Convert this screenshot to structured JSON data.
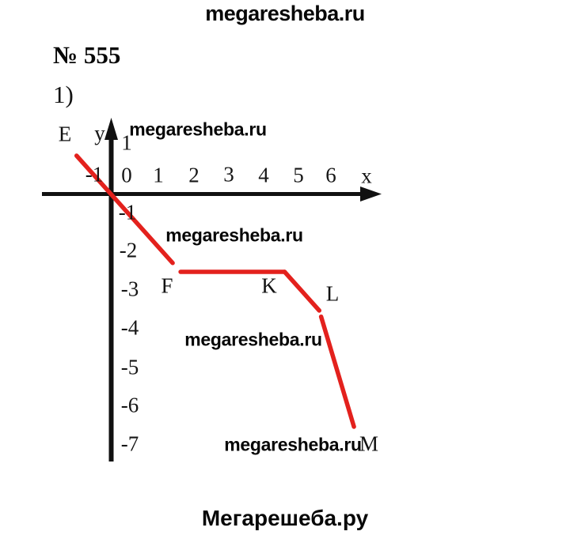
{
  "header": {
    "site_watermark": "megaresheba.ru",
    "problem_number": "№ 555",
    "part_label": "1)"
  },
  "footer": {
    "site_name": "Мегарешеба.ру"
  },
  "watermarks": [
    "megaresheba.ru",
    "megaresheba.ru",
    "megaresheba.ru",
    "megaresheba.ru"
  ],
  "chart_data": {
    "type": "line",
    "title": "",
    "description": "Red polyline through labeled points E, F, K, L, M on a coordinate plane",
    "points": [
      {
        "label": "E",
        "x": -1,
        "y": 1
      },
      {
        "label": "F",
        "x": 2,
        "y": -2
      },
      {
        "label": "K",
        "x": 5,
        "y": -2
      },
      {
        "label": "L",
        "x": 6,
        "y": -3
      },
      {
        "label": "M",
        "x": 7,
        "y": -6
      }
    ],
    "x_axis": {
      "label": "x",
      "ticks": [
        "-1",
        "0",
        "1",
        "2",
        "3",
        "4",
        "5",
        "6"
      ],
      "range": [
        -2,
        7.8
      ]
    },
    "y_axis": {
      "label": "y",
      "ticks": [
        "1",
        "-1",
        "-2",
        "-3",
        "-4",
        "-5",
        "-6",
        "-7"
      ],
      "range": [
        -7.5,
        2
      ]
    },
    "line_color": "#e3211d",
    "axis_color": "#111111",
    "grid": false,
    "legend": false
  }
}
